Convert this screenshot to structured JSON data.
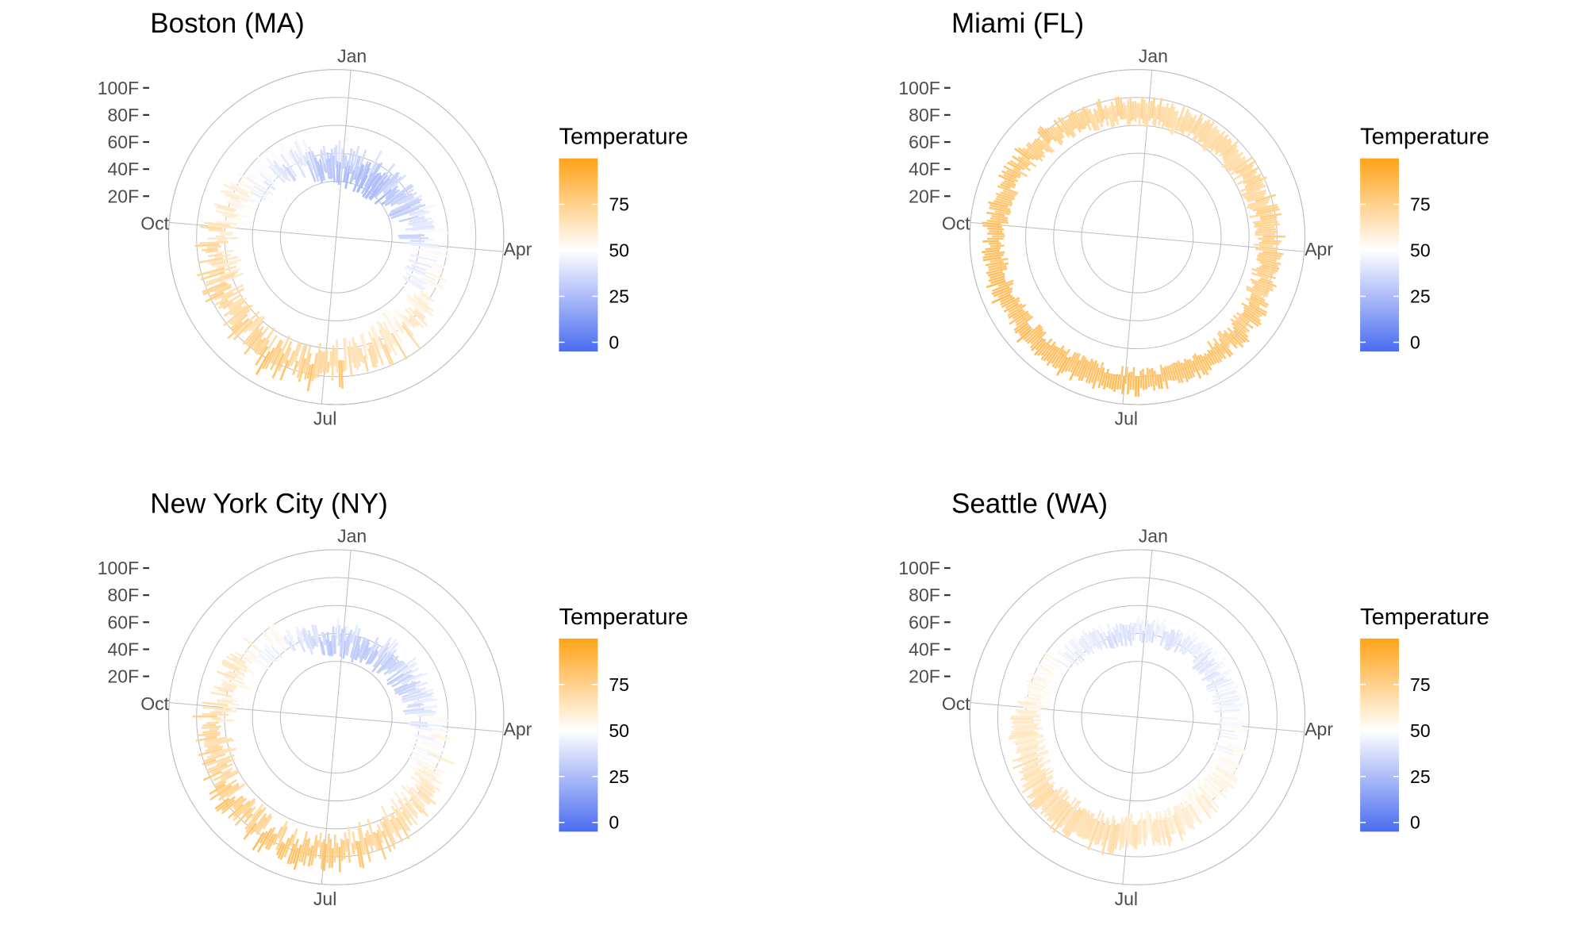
{
  "figure": {
    "type": "radial temperature chart grid",
    "theme": "white background, grey grid"
  },
  "chart_data": [
    {
      "type": "polar-bar",
      "title": "Boston (MA)",
      "theta_labels": [
        "Jan",
        "Apr",
        "Jul",
        "Oct"
      ],
      "r_tick_labels": [
        "20F",
        "40F",
        "60F",
        "80F",
        "100F"
      ],
      "r_ticks": [
        20,
        40,
        60,
        80,
        100
      ],
      "r_range": [
        -20,
        100
      ],
      "grid": true,
      "legend": {
        "title": "Temperature",
        "labels": [
          "75",
          "50",
          "25",
          "0"
        ],
        "values": [
          75,
          50,
          25,
          0
        ],
        "range": [
          -5,
          100
        ],
        "colors": {
          "low": "#4a6cf0",
          "mid": "#ffffff",
          "high": "#ffa318"
        },
        "position": "right"
      },
      "series_description": "Daily temperature ranges (low to high, F) for one year, drawn as radial segments",
      "monthly_low": [
        22,
        24,
        31,
        41,
        50,
        60,
        66,
        65,
        58,
        47,
        38,
        28
      ],
      "monthly_high": [
        37,
        40,
        47,
        57,
        67,
        77,
        82,
        80,
        73,
        62,
        52,
        41
      ],
      "variability": 9
    },
    {
      "type": "polar-bar",
      "title": "Miami (FL)",
      "theta_labels": [
        "Jan",
        "Apr",
        "Jul",
        "Oct"
      ],
      "r_tick_labels": [
        "20F",
        "40F",
        "60F",
        "80F",
        "100F"
      ],
      "r_ticks": [
        20,
        40,
        60,
        80,
        100
      ],
      "r_range": [
        -20,
        100
      ],
      "grid": true,
      "legend": {
        "title": "Temperature",
        "labels": [
          "75",
          "50",
          "25",
          "0"
        ],
        "values": [
          75,
          50,
          25,
          0
        ],
        "range": [
          -5,
          100
        ],
        "colors": {
          "low": "#4a6cf0",
          "mid": "#ffffff",
          "high": "#ffa318"
        },
        "position": "right"
      },
      "series_description": "Daily temperature ranges (low to high, F) for one year, drawn as radial segments",
      "monthly_low": [
        61,
        62,
        65,
        69,
        73,
        76,
        77,
        77,
        77,
        74,
        69,
        64
      ],
      "monthly_high": [
        76,
        77,
        80,
        83,
        86,
        89,
        90,
        90,
        89,
        86,
        81,
        78
      ],
      "variability": 4
    },
    {
      "type": "polar-bar",
      "title": "New York City (NY)",
      "theta_labels": [
        "Jan",
        "Apr",
        "Jul",
        "Oct"
      ],
      "r_tick_labels": [
        "20F",
        "40F",
        "60F",
        "80F",
        "100F"
      ],
      "r_ticks": [
        20,
        40,
        60,
        80,
        100
      ],
      "r_range": [
        -20,
        100
      ],
      "grid": true,
      "legend": {
        "title": "Temperature",
        "labels": [
          "75",
          "50",
          "25",
          "0"
        ],
        "values": [
          75,
          50,
          25,
          0
        ],
        "range": [
          -5,
          100
        ],
        "colors": {
          "low": "#4a6cf0",
          "mid": "#ffffff",
          "high": "#ffa318"
        },
        "position": "right"
      },
      "series_description": "Daily temperature ranges (low to high, F) for one year, drawn as radial segments",
      "monthly_low": [
        27,
        29,
        35,
        45,
        55,
        64,
        70,
        69,
        62,
        51,
        42,
        32
      ],
      "monthly_high": [
        39,
        42,
        50,
        61,
        71,
        80,
        85,
        83,
        76,
        65,
        54,
        44
      ],
      "variability": 8
    },
    {
      "type": "polar-bar",
      "title": "Seattle (WA)",
      "theta_labels": [
        "Jan",
        "Apr",
        "Jul",
        "Oct"
      ],
      "r_tick_labels": [
        "20F",
        "40F",
        "60F",
        "80F",
        "100F"
      ],
      "r_ticks": [
        20,
        40,
        60,
        80,
        100
      ],
      "r_range": [
        -20,
        100
      ],
      "grid": true,
      "legend": {
        "title": "Temperature",
        "labels": [
          "75",
          "50",
          "25",
          "0"
        ],
        "values": [
          75,
          50,
          25,
          0
        ],
        "range": [
          -5,
          100
        ],
        "colors": {
          "low": "#4a6cf0",
          "mid": "#ffffff",
          "high": "#ffa318"
        },
        "position": "right"
      },
      "series_description": "Daily temperature ranges (low to high, F) for one year, drawn as radial segments",
      "monthly_low": [
        37,
        37,
        39,
        42,
        47,
        52,
        56,
        56,
        52,
        46,
        40,
        36
      ],
      "monthly_high": [
        47,
        50,
        54,
        58,
        65,
        70,
        76,
        76,
        70,
        60,
        51,
        46
      ],
      "variability": 5
    }
  ]
}
